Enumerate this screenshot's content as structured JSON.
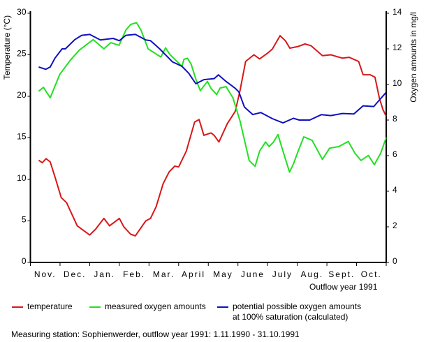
{
  "chart_data": {
    "type": "line",
    "xlabel": "Outflow year 1991",
    "ylabel_left": "Temperature (°C)",
    "ylabel_right": "Oxygen amounts in mg/l",
    "categories": [
      "Nov.",
      "Dec.",
      "Jan.",
      "Feb.",
      "Mar.",
      "April",
      "May",
      "June",
      "July",
      "Aug.",
      "Sept.",
      "Oct."
    ],
    "ylim_left": [
      0,
      30
    ],
    "yticks_left": [
      "0",
      "5",
      "10",
      "15",
      "20",
      "25",
      "30"
    ],
    "ylim_right": [
      0,
      14
    ],
    "yticks_right": [
      "0",
      "2",
      "4",
      "6",
      "8",
      "10",
      "12",
      "14"
    ],
    "grid": false,
    "legend_position": "bottom",
    "series": [
      {
        "name": "temperature",
        "axis": "left",
        "color": "#d81818",
        "x": [
          0.28,
          0.4,
          0.53,
          0.67,
          0.83,
          1.04,
          1.22,
          1.58,
          2.0,
          2.2,
          2.48,
          2.67,
          3.0,
          3.15,
          3.38,
          3.54,
          3.89,
          4.05,
          4.24,
          4.48,
          4.68,
          4.87,
          5.0,
          5.26,
          5.54,
          5.69,
          5.85,
          6.09,
          6.2,
          6.36,
          6.64,
          6.91,
          7.07,
          7.26,
          7.54,
          7.73,
          8.0,
          8.16,
          8.42,
          8.6,
          8.75,
          9.03,
          9.26,
          9.46,
          9.85,
          10.13,
          10.52,
          10.75,
          11.07,
          11.22,
          11.46,
          11.62,
          11.77,
          11.89,
          12.0
        ],
        "values": [
          12.3,
          12.0,
          12.5,
          12.1,
          10.3,
          7.8,
          7.2,
          4.4,
          3.3,
          4.0,
          5.3,
          4.4,
          5.3,
          4.3,
          3.4,
          3.2,
          5.0,
          5.3,
          6.7,
          9.5,
          10.9,
          11.6,
          11.5,
          13.4,
          16.9,
          17.2,
          15.3,
          15.6,
          15.3,
          14.5,
          16.7,
          18.2,
          20.7,
          24.2,
          25.0,
          24.5,
          25.2,
          25.7,
          27.3,
          26.7,
          25.8,
          26.0,
          26.3,
          26.1,
          24.9,
          25.0,
          24.6,
          24.7,
          24.2,
          22.6,
          22.6,
          22.3,
          19.8,
          18.4,
          17.6
        ]
      },
      {
        "name": "measured oxygen amounts",
        "axis": "right",
        "color": "#22e022",
        "x": [
          0.28,
          0.44,
          0.67,
          0.99,
          1.34,
          1.65,
          2.0,
          2.12,
          2.48,
          2.71,
          2.99,
          3.22,
          3.38,
          3.58,
          3.73,
          3.97,
          4.16,
          4.4,
          4.56,
          4.71,
          5.11,
          5.18,
          5.3,
          5.42,
          5.58,
          5.73,
          5.97,
          6.09,
          6.28,
          6.4,
          6.6,
          6.83,
          7.07,
          7.38,
          7.58,
          7.73,
          7.93,
          8.05,
          8.2,
          8.35,
          8.52,
          8.74,
          8.87,
          9.03,
          9.22,
          9.5,
          9.85,
          10.09,
          10.4,
          10.72,
          10.95,
          11.15,
          11.4,
          11.6,
          11.81,
          12.0
        ],
        "values": [
          9.62,
          9.84,
          9.25,
          10.56,
          11.35,
          11.93,
          12.37,
          12.52,
          12.0,
          12.35,
          12.2,
          13.05,
          13.37,
          13.47,
          13.05,
          12.0,
          11.8,
          11.54,
          12.06,
          11.67,
          11.02,
          11.41,
          11.47,
          11.15,
          10.3,
          9.65,
          10.17,
          9.78,
          9.43,
          9.8,
          9.88,
          9.25,
          7.95,
          5.73,
          5.4,
          6.25,
          6.77,
          6.51,
          6.77,
          7.19,
          6.25,
          5.07,
          5.53,
          6.25,
          7.06,
          6.86,
          5.79,
          6.42,
          6.51,
          6.8,
          6.12,
          5.73,
          6.01,
          5.49,
          6.12,
          7.01
        ]
      },
      {
        "name": "potential possible oxygen amounts at 100% saturation (calculated)",
        "axis": "right",
        "color": "#1010c0",
        "x": [
          0.28,
          0.52,
          0.67,
          0.83,
          1.07,
          1.18,
          1.5,
          1.73,
          2.0,
          2.36,
          2.79,
          3.0,
          3.22,
          3.54,
          3.89,
          4.05,
          4.36,
          4.79,
          5.11,
          5.34,
          5.58,
          5.85,
          6.05,
          6.2,
          6.34,
          6.6,
          6.91,
          7.03,
          7.22,
          7.5,
          7.77,
          8.16,
          8.52,
          8.87,
          9.07,
          9.42,
          9.81,
          10.13,
          10.52,
          10.91,
          11.22,
          11.58,
          11.77,
          11.99
        ],
        "values": [
          10.98,
          10.85,
          10.98,
          11.48,
          12.0,
          12.0,
          12.52,
          12.76,
          12.81,
          12.5,
          12.59,
          12.46,
          12.76,
          12.81,
          12.5,
          12.46,
          12.0,
          11.27,
          11.02,
          10.63,
          10.04,
          10.27,
          10.3,
          10.33,
          10.54,
          10.17,
          9.78,
          9.58,
          8.73,
          8.31,
          8.42,
          8.08,
          7.84,
          8.1,
          8.0,
          8.0,
          8.3,
          8.25,
          8.37,
          8.34,
          8.8,
          8.76,
          9.12,
          9.54
        ]
      }
    ]
  },
  "legend": {
    "temperature": "temperature",
    "measured": "measured oxygen amounts",
    "potential_line1": "potential possible oxygen amounts",
    "potential_line2": "at 100% saturation (calculated)"
  },
  "footnote": "Measuring station: Sophienwerder, outflow year 1991: 1.11.1990 - 31.10.1991"
}
